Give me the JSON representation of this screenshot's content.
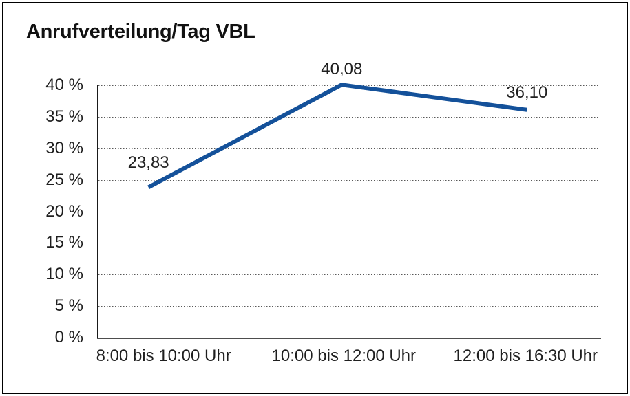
{
  "window": {
    "background": "#ffffff",
    "frame_border_color": "#000000"
  },
  "chart_data": {
    "type": "line",
    "title": "Anrufverteilung/Tag VBL",
    "categories": [
      "8:00 bis 10:00 Uhr",
      "10:00 bis 12:00 Uhr",
      "12:00 bis 16:30 Uhr"
    ],
    "series": [
      {
        "name": "Anrufverteilung/Tag VBL",
        "values": [
          23.83,
          40.08,
          36.1
        ],
        "point_labels": [
          "23,83",
          "40,08",
          "36,10"
        ],
        "color": "#14519A"
      }
    ],
    "xlabel": "",
    "ylabel": "",
    "ylim": [
      0,
      40
    ],
    "ytick_step": 5,
    "ytick_labels": [
      "0 %",
      "5 %",
      "10 %",
      "15 %",
      "20 %",
      "25 %",
      "30 %",
      "35 %",
      "40 %"
    ],
    "grid": "horizontal-dotted",
    "legend": "none",
    "colors": {
      "text": "#1f1f1f",
      "grid": "#595959",
      "y_axis": "#1a1a1a",
      "x_axis": "#4d4d4d"
    }
  }
}
